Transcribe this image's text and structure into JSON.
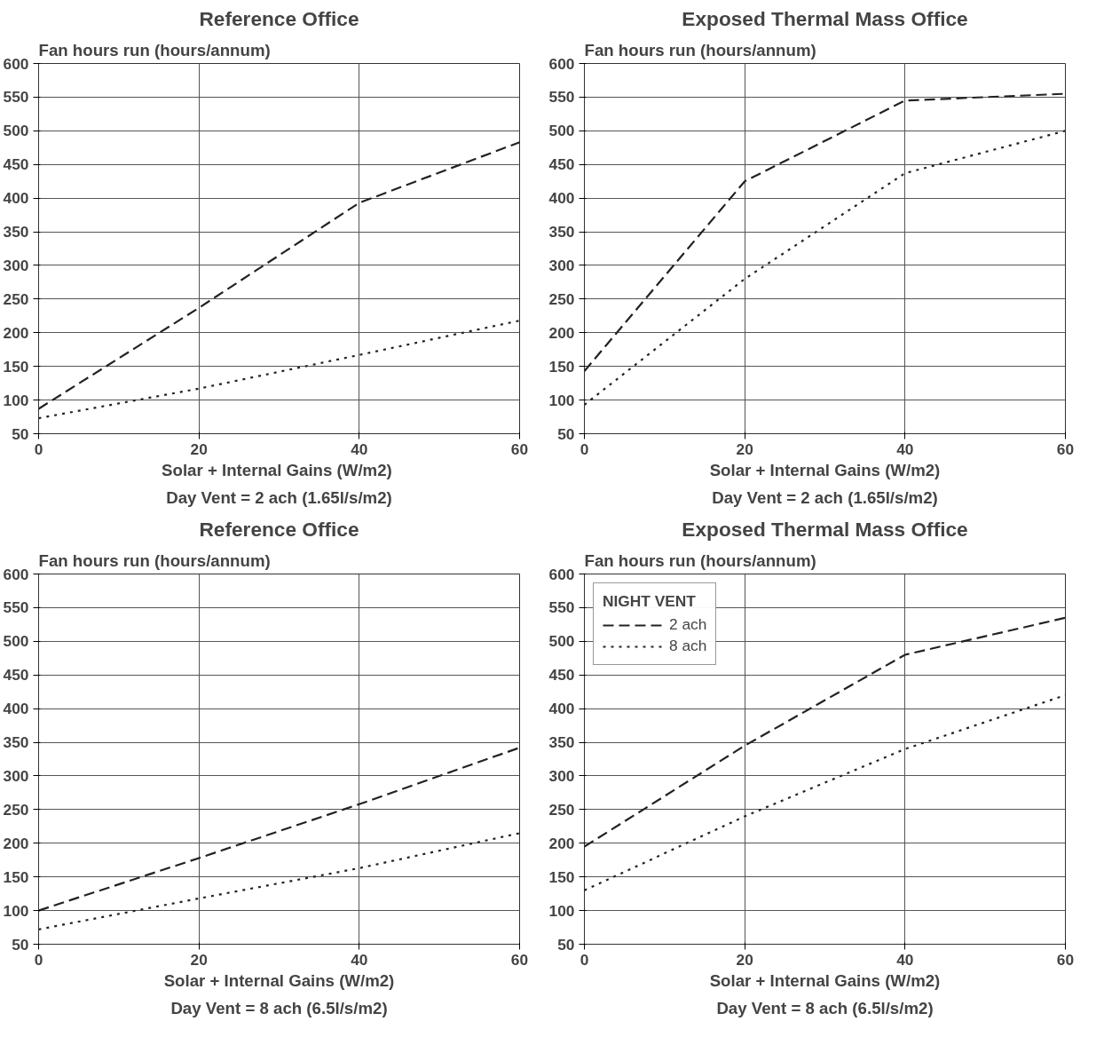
{
  "chart_data": [
    {
      "type": "line",
      "title": "Reference Office",
      "ylabel": "Fan hours run (hours/annum)",
      "xlabel": "Solar + Internal Gains  (W/m2)",
      "annotations": [
        "Day Vent = 2 ach (1.65l/s/m2)"
      ],
      "x": [
        0,
        20,
        40,
        60
      ],
      "xlim": [
        0,
        60
      ],
      "xticks": [
        0,
        20,
        40,
        60
      ],
      "ylim": [
        50,
        600
      ],
      "yticks": [
        50,
        100,
        150,
        200,
        250,
        300,
        350,
        400,
        450,
        500,
        550,
        600
      ],
      "grid": true,
      "legend": false,
      "series": [
        {
          "color": "#222222",
          "line_style": "dashed",
          "values": [
            87,
            237,
            393,
            483
          ]
        },
        {
          "color": "#222222",
          "line_style": "dotted",
          "values": [
            73,
            117,
            167,
            218
          ]
        }
      ]
    },
    {
      "type": "line",
      "title": "Exposed Thermal Mass Office",
      "ylabel": "Fan hours run (hours/annum)",
      "xlabel": "Solar + Internal Gains (W/m2)",
      "annotations": [
        "Day Vent = 2 ach (1.65l/s/m2)"
      ],
      "x": [
        0,
        20,
        40,
        60
      ],
      "xlim": [
        0,
        60
      ],
      "xticks": [
        0,
        20,
        40,
        60
      ],
      "ylim": [
        50,
        600
      ],
      "yticks": [
        50,
        100,
        150,
        200,
        250,
        300,
        350,
        400,
        450,
        500,
        550,
        600
      ],
      "grid": true,
      "legend": false,
      "series": [
        {
          "color": "#222222",
          "line_style": "dashed",
          "values": [
            143,
            425,
            545,
            555
          ]
        },
        {
          "color": "#222222",
          "line_style": "dotted",
          "values": [
            93,
            280,
            437,
            500
          ]
        }
      ]
    },
    {
      "type": "line",
      "title": "Reference Office",
      "ylabel": "Fan hours run (hours/annum)",
      "xlabel": "Solar + Internal Gains (W/m2)",
      "annotations": [
        "Day Vent = 8 ach (6.5l/s/m2)"
      ],
      "x": [
        0,
        20,
        40,
        60
      ],
      "xlim": [
        0,
        60
      ],
      "xticks": [
        0,
        20,
        40,
        60
      ],
      "ylim": [
        50,
        600
      ],
      "yticks": [
        50,
        100,
        150,
        200,
        250,
        300,
        350,
        400,
        450,
        500,
        550,
        600
      ],
      "grid": true,
      "legend": false,
      "series": [
        {
          "color": "#222222",
          "line_style": "dashed",
          "values": [
            100,
            178,
            258,
            342
          ]
        },
        {
          "color": "#222222",
          "line_style": "dotted",
          "values": [
            72,
            118,
            163,
            215
          ]
        }
      ]
    },
    {
      "type": "line",
      "title": "Exposed Thermal Mass Office",
      "ylabel": "Fan hours run (hours/annum)",
      "xlabel": "Solar + Internal Gains (W/m2)",
      "annotations": [
        "Day Vent = 8 ach (6.5l/s/m2)"
      ],
      "legend_title": "NIGHT VENT",
      "x": [
        0,
        20,
        40,
        60
      ],
      "xlim": [
        0,
        60
      ],
      "xticks": [
        0,
        20,
        40,
        60
      ],
      "ylim": [
        50,
        600
      ],
      "yticks": [
        50,
        100,
        150,
        200,
        250,
        300,
        350,
        400,
        450,
        500,
        550,
        600
      ],
      "grid": true,
      "legend": "top left",
      "series": [
        {
          "name": "2 ach",
          "color": "#222222",
          "line_style": "dashed",
          "values": [
            195,
            345,
            480,
            535
          ]
        },
        {
          "name": "8 ach",
          "color": "#222222",
          "line_style": "dotted",
          "values": [
            130,
            240,
            340,
            420
          ]
        }
      ]
    }
  ]
}
